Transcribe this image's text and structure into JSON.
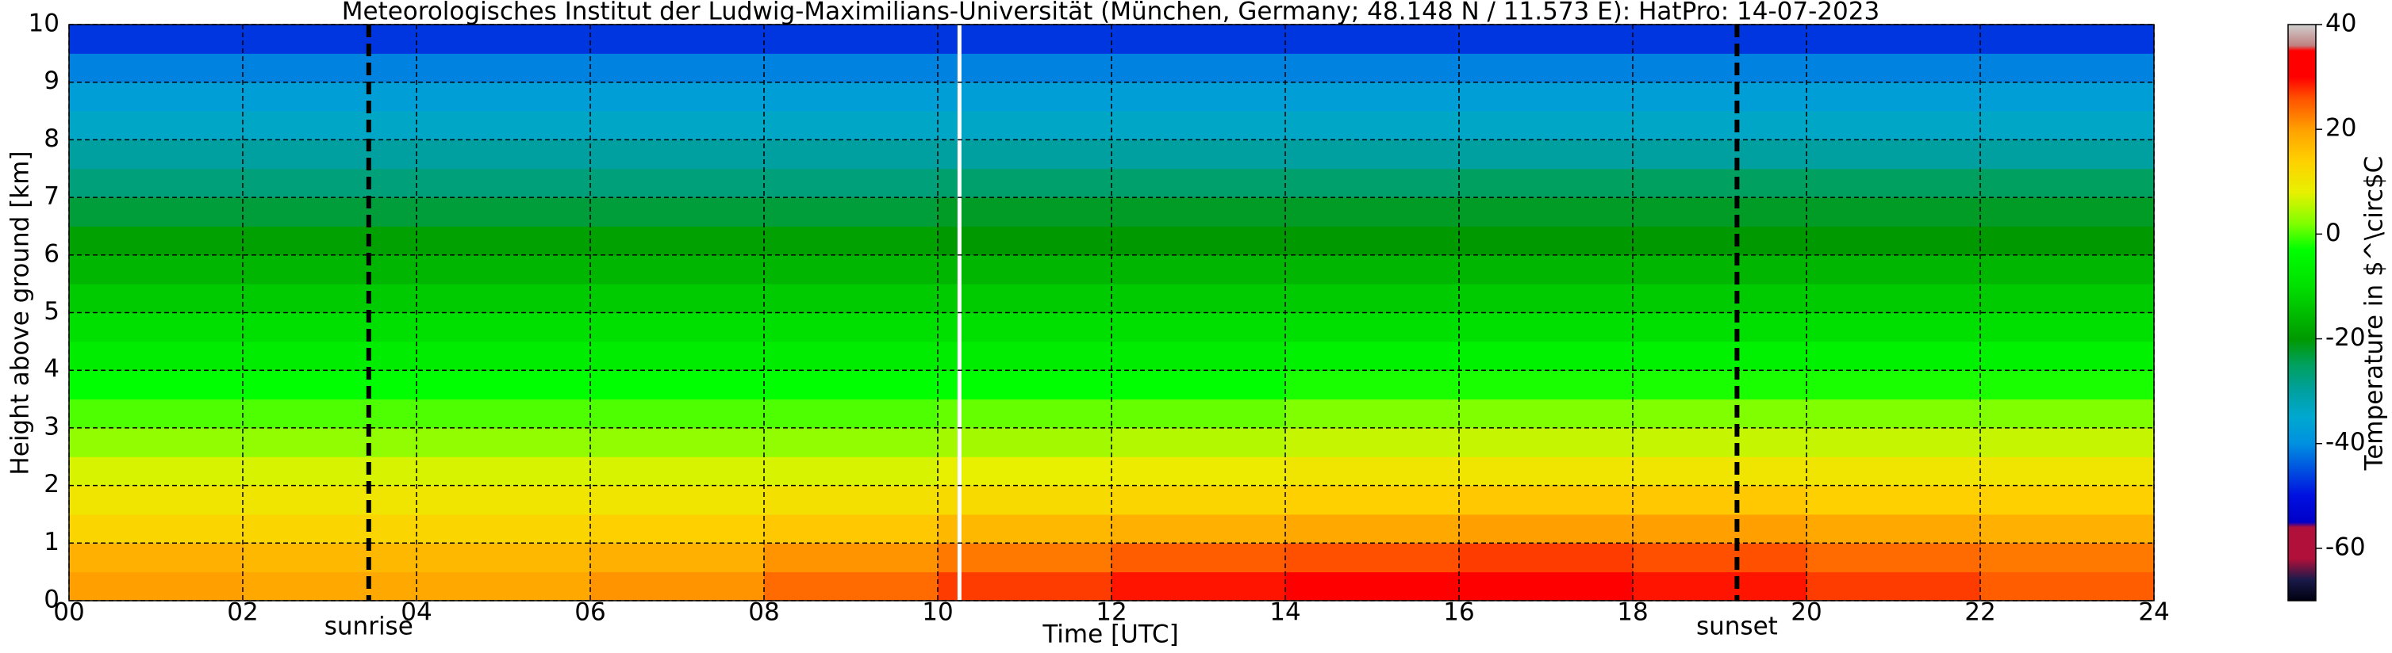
{
  "chart_data": {
    "type": "heatmap",
    "title": "Meteorologisches Institut der Ludwig-Maximilians-Universität (München, Germany; 48.148 N / 11.573 E):    HatPro: 14-07-2023",
    "x_label": "Time [UTC]",
    "y_label": "Height above ground [km]",
    "colorbar_label": "Temperature in $^\\circ$C",
    "xbins": [
      0,
      2,
      4,
      6,
      8,
      10,
      12,
      14,
      16,
      18,
      20,
      22,
      24
    ],
    "ybins": [
      0,
      0.5,
      1,
      1.5,
      2,
      2.5,
      3,
      3.5,
      4,
      4.5,
      5,
      5.5,
      6,
      6.5,
      7,
      7.5,
      8,
      8.5,
      9,
      9.5,
      10
    ],
    "values": [
      [
        20,
        19,
        19,
        21,
        24,
        27,
        29,
        30,
        30,
        29,
        27,
        25
      ],
      [
        18,
        17,
        17,
        18,
        21,
        23,
        25,
        26,
        27,
        26,
        24,
        23
      ],
      [
        13,
        13,
        13,
        14,
        15,
        17,
        18,
        19,
        20,
        20,
        19,
        18
      ],
      [
        10,
        10,
        10,
        10,
        11,
        12,
        13,
        14,
        15,
        15,
        14,
        14
      ],
      [
        7,
        7,
        7,
        7,
        7,
        8,
        9,
        10,
        10,
        10,
        10,
        10
      ],
      [
        3,
        3,
        3,
        3,
        3,
        4,
        5,
        6,
        6,
        6,
        6,
        6
      ],
      [
        0,
        0,
        0,
        0,
        0,
        1,
        1,
        2,
        2,
        2,
        2,
        2
      ],
      [
        -3,
        -3,
        -3,
        -3,
        -3,
        -3,
        -3,
        -2,
        -2,
        -2,
        -2,
        -2
      ],
      [
        -7,
        -7,
        -7,
        -7,
        -7,
        -7,
        -7,
        -6,
        -6,
        -6,
        -6,
        -6
      ],
      [
        -10,
        -10,
        -10,
        -10,
        -10,
        -10,
        -10,
        -10,
        -10,
        -10,
        -10,
        -10
      ],
      [
        -13,
        -13,
        -13,
        -13,
        -13,
        -13,
        -13,
        -13,
        -13,
        -13,
        -13,
        -13
      ],
      [
        -16,
        -16,
        -16,
        -16,
        -16,
        -16,
        -16,
        -16,
        -16,
        -16,
        -16,
        -16
      ],
      [
        -19,
        -19,
        -19,
        -19,
        -19,
        -20,
        -20,
        -20,
        -20,
        -20,
        -20,
        -20
      ],
      [
        -23,
        -23,
        -23,
        -23,
        -23,
        -22,
        -22,
        -22,
        -22,
        -22,
        -22,
        -22
      ],
      [
        -27,
        -27,
        -27,
        -27,
        -27,
        -26,
        -26,
        -26,
        -25,
        -25,
        -25,
        -25
      ],
      [
        -30,
        -30,
        -30,
        -30,
        -30,
        -30,
        -30,
        -30,
        -30,
        -30,
        -30,
        -30
      ],
      [
        -34,
        -34,
        -34,
        -34,
        -34,
        -34,
        -34,
        -34,
        -34,
        -34,
        -34,
        -34
      ],
      [
        -37,
        -37,
        -37,
        -37,
        -37,
        -37,
        -37,
        -37,
        -37,
        -37,
        -37,
        -37
      ],
      [
        -41,
        -41,
        -41,
        -41,
        -41,
        -41,
        -41,
        -41,
        -41,
        -41,
        -41,
        -41
      ],
      [
        -47,
        -47,
        -47,
        -47,
        -47,
        -47,
        -47,
        -47,
        -47,
        -47,
        -47,
        -47
      ]
    ],
    "xlim": [
      0,
      24
    ],
    "ylim": [
      0,
      10
    ],
    "xticks": [
      {
        "value": 0,
        "label": "00"
      },
      {
        "value": 2,
        "label": "02"
      },
      {
        "value": 4,
        "label": "04"
      },
      {
        "value": 6,
        "label": "06"
      },
      {
        "value": 8,
        "label": "08"
      },
      {
        "value": 10,
        "label": "10"
      },
      {
        "value": 12,
        "label": "12"
      },
      {
        "value": 14,
        "label": "14"
      },
      {
        "value": 16,
        "label": "16"
      },
      {
        "value": 18,
        "label": "18"
      },
      {
        "value": 20,
        "label": "20"
      },
      {
        "value": 22,
        "label": "22"
      },
      {
        "value": 24,
        "label": "24"
      }
    ],
    "yticks": [
      0,
      1,
      2,
      3,
      4,
      5,
      6,
      7,
      8,
      9,
      10
    ],
    "clim": [
      -70,
      40
    ],
    "cticks": [
      -60,
      -40,
      -20,
      0,
      20,
      40
    ],
    "colormap": [
      {
        "value": -70,
        "color": "#000010"
      },
      {
        "value": -66,
        "color": "#1a1a4a"
      },
      {
        "value": -62,
        "color": "#b0103a"
      },
      {
        "value": -56,
        "color": "#b0103a"
      },
      {
        "value": -55,
        "color": "#0000c8"
      },
      {
        "value": -50,
        "color": "#0010e0"
      },
      {
        "value": -45,
        "color": "#0050e0"
      },
      {
        "value": -40,
        "color": "#0090e0"
      },
      {
        "value": -35,
        "color": "#00a8d0"
      },
      {
        "value": -30,
        "color": "#00a0a0"
      },
      {
        "value": -25,
        "color": "#00a060"
      },
      {
        "value": -20,
        "color": "#009a00"
      },
      {
        "value": -10,
        "color": "#00e000"
      },
      {
        "value": -3,
        "color": "#00ff00"
      },
      {
        "value": 2,
        "color": "#80ff00"
      },
      {
        "value": 8,
        "color": "#e8f000"
      },
      {
        "value": 14,
        "color": "#ffd000"
      },
      {
        "value": 20,
        "color": "#ffa000"
      },
      {
        "value": 26,
        "color": "#ff5000"
      },
      {
        "value": 30,
        "color": "#ff0000"
      },
      {
        "value": 35,
        "color": "#ff0000"
      },
      {
        "value": 36,
        "color": "#c08080"
      },
      {
        "value": 40,
        "color": "#d0d0d0"
      }
    ],
    "grid": true,
    "gaps": [
      10.25
    ],
    "annotations": [
      {
        "label": "sunrise",
        "x": 3.45
      },
      {
        "label": "sunset",
        "x": 19.2
      }
    ]
  }
}
